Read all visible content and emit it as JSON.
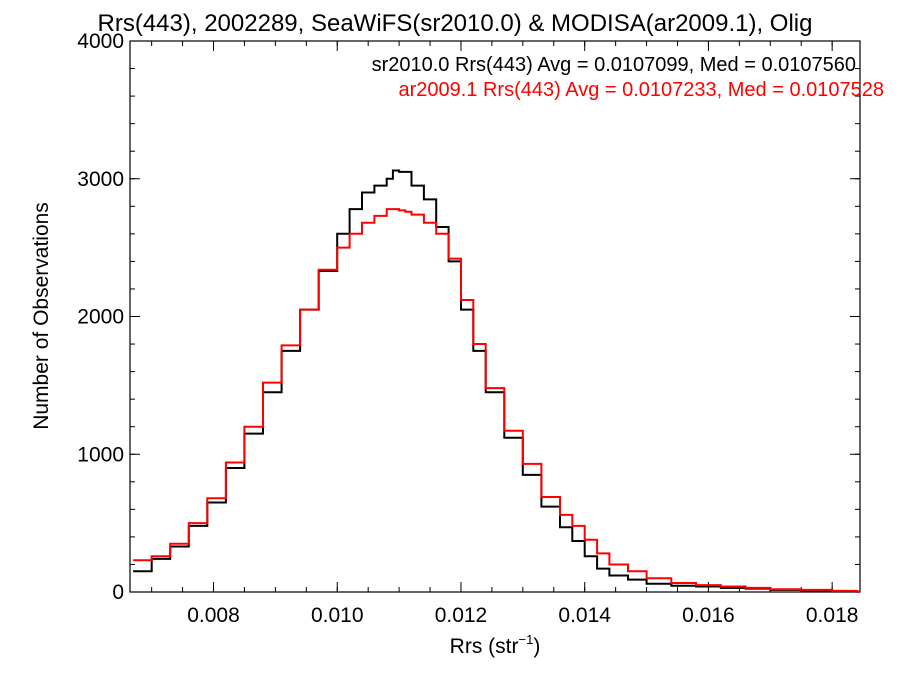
{
  "chart_data": {
    "type": "line",
    "title": "Rrs(443), 2002289, SeaWiFS(sr2010.0) & MODISA(ar2009.1), Olig",
    "xlabel_main": "Rrs (str",
    "xlabel_sup": "−1",
    "xlabel_close": ")",
    "ylabel": "Number of Observations",
    "xlim": [
      0.00665,
      0.01845
    ],
    "ylim": [
      0,
      4000
    ],
    "x_ticks": [
      0.008,
      0.01,
      0.012,
      0.014,
      0.016,
      0.018
    ],
    "x_tick_labels": [
      "0.008",
      "0.010",
      "0.012",
      "0.014",
      "0.016",
      "0.018"
    ],
    "y_ticks": [
      0,
      1000,
      2000,
      3000,
      4000
    ],
    "y_tick_labels": [
      "0",
      "1000",
      "2000",
      "3000",
      "4000"
    ],
    "grid": false,
    "legend_position": "top-right",
    "series": [
      {
        "name": "sr2010.0 Rrs(443) Avg = 0.0107099, Med = 0.0107560",
        "color": "#000000",
        "x": [
          0.0067,
          0.007,
          0.0073,
          0.0076,
          0.0079,
          0.0082,
          0.0085,
          0.0088,
          0.0091,
          0.0094,
          0.0097,
          0.01,
          0.0102,
          0.0104,
          0.0106,
          0.0108,
          0.0109,
          0.011,
          0.0111,
          0.0112,
          0.0114,
          0.0116,
          0.0118,
          0.012,
          0.0122,
          0.0124,
          0.0127,
          0.013,
          0.0133,
          0.0136,
          0.0138,
          0.014,
          0.0142,
          0.0144,
          0.0147,
          0.015,
          0.0154,
          0.0158,
          0.0162,
          0.0166,
          0.017,
          0.0175,
          0.018,
          0.0184
        ],
        "y": [
          150,
          240,
          330,
          480,
          650,
          900,
          1150,
          1450,
          1750,
          2050,
          2330,
          2600,
          2780,
          2900,
          2950,
          3000,
          3060,
          3050,
          3050,
          2950,
          2850,
          2650,
          2400,
          2050,
          1750,
          1450,
          1120,
          850,
          620,
          470,
          370,
          260,
          170,
          120,
          90,
          60,
          45,
          40,
          30,
          25,
          15,
          10,
          5,
          2
        ]
      },
      {
        "name": "ar2009.1 Rrs(443) Avg = 0.0107233, Med = 0.0107528",
        "color": "#ff0000",
        "x": [
          0.0067,
          0.007,
          0.0073,
          0.0076,
          0.0079,
          0.0082,
          0.0085,
          0.0088,
          0.0091,
          0.0094,
          0.0097,
          0.01,
          0.0102,
          0.0104,
          0.0106,
          0.0108,
          0.0109,
          0.011,
          0.0111,
          0.0112,
          0.0114,
          0.0116,
          0.0118,
          0.012,
          0.0122,
          0.0124,
          0.0127,
          0.013,
          0.0133,
          0.0136,
          0.0138,
          0.014,
          0.0142,
          0.0144,
          0.0147,
          0.015,
          0.0154,
          0.0158,
          0.0162,
          0.0166,
          0.017,
          0.0175,
          0.018,
          0.0184
        ],
        "y": [
          230,
          260,
          350,
          500,
          680,
          940,
          1200,
          1520,
          1790,
          2050,
          2340,
          2500,
          2600,
          2680,
          2730,
          2780,
          2780,
          2770,
          2760,
          2740,
          2680,
          2600,
          2420,
          2120,
          1800,
          1480,
          1170,
          930,
          690,
          560,
          480,
          380,
          280,
          200,
          150,
          100,
          65,
          50,
          40,
          30,
          20,
          15,
          8,
          3
        ]
      }
    ]
  }
}
